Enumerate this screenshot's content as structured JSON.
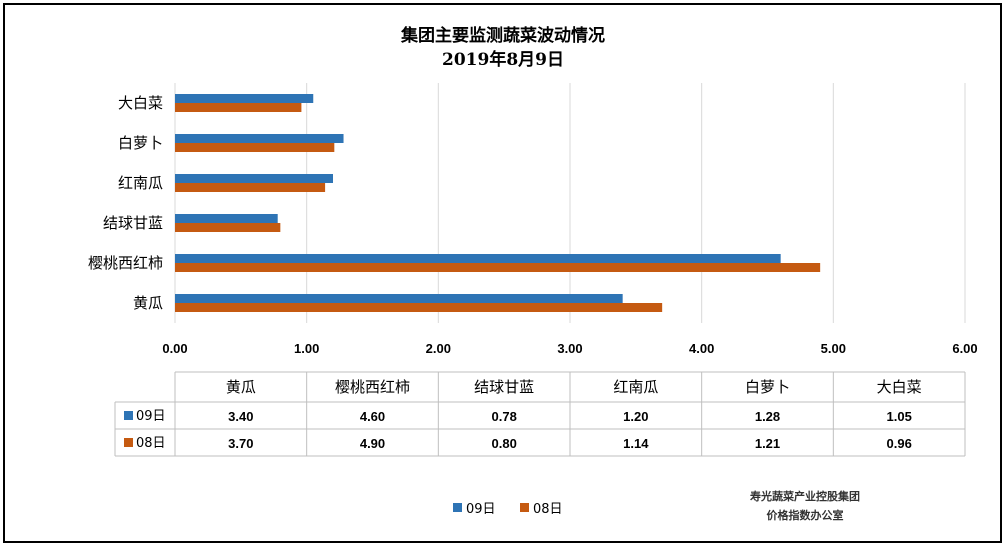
{
  "chart_data": {
    "type": "bar",
    "orientation": "horizontal",
    "title": "集团主要监测蔬菜波动情况",
    "subtitle": "2019年8月9日",
    "categories": [
      "黄瓜",
      "樱桃西红柿",
      "结球甘蓝",
      "红南瓜",
      "白萝卜",
      "大白菜"
    ],
    "series": [
      {
        "name": "09日",
        "color": "#2e74b5",
        "values": [
          3.4,
          4.6,
          0.78,
          1.2,
          1.28,
          1.05
        ],
        "labels": [
          "3.40",
          "4.60",
          "0.78",
          "1.20",
          "1.28",
          "1.05"
        ]
      },
      {
        "name": "08日",
        "color": "#c55a11",
        "values": [
          3.7,
          4.9,
          0.8,
          1.14,
          1.21,
          0.96
        ],
        "labels": [
          "3.70",
          "4.90",
          "0.80",
          "1.14",
          "1.21",
          "0.96"
        ]
      }
    ],
    "xlim": [
      0,
      6
    ],
    "xticks": [
      "0.00",
      "1.00",
      "2.00",
      "3.00",
      "4.00",
      "5.00",
      "6.00"
    ],
    "grid": true,
    "data_table": true,
    "legend_position": "bottom"
  },
  "credit": {
    "line1": "寿光蔬菜产业控股集团",
    "line2": "价格指数办公室"
  }
}
